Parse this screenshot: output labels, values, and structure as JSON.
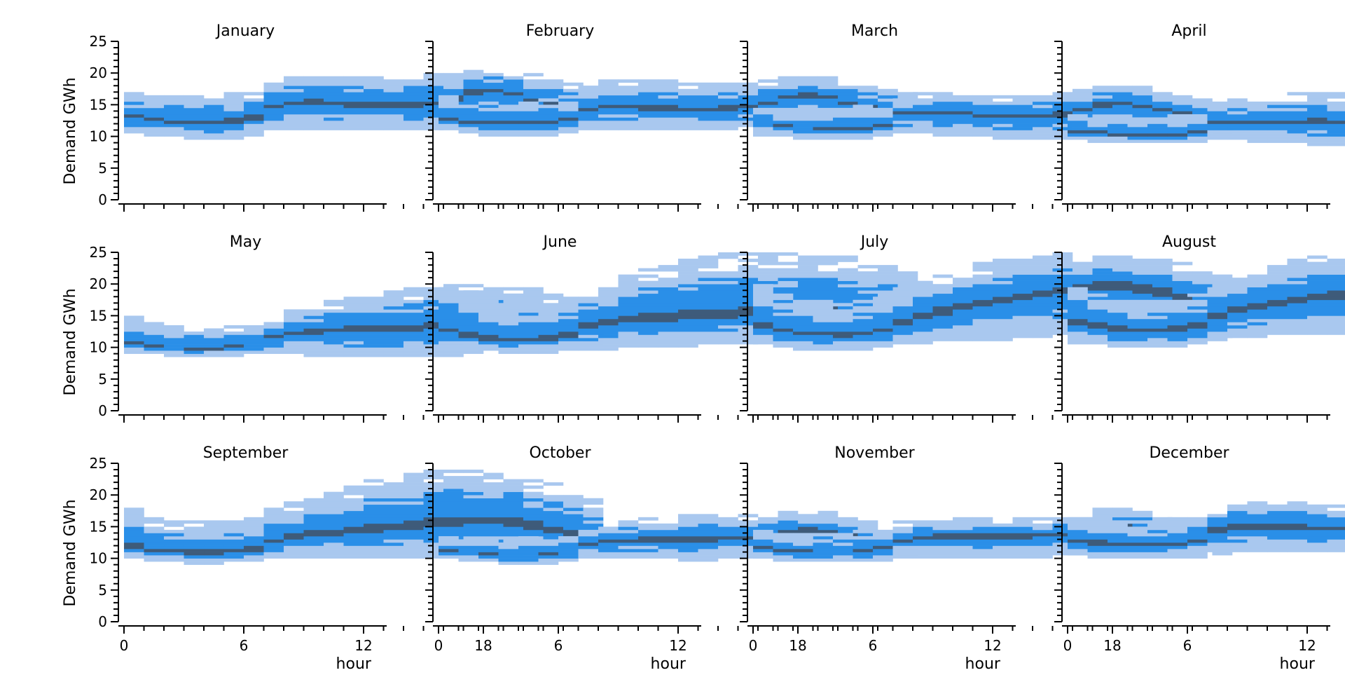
{
  "chart_data": {
    "type": "heatmap",
    "kind": "2d-histogram-facet-grid",
    "xlabel": "hour",
    "ylabel": "Demand GWh",
    "x_ticks": [
      0,
      6,
      12,
      18
    ],
    "x_range": [
      0,
      23
    ],
    "y_ticks": [
      0,
      5,
      10,
      15,
      20,
      25
    ],
    "ylim": [
      0,
      25
    ],
    "bin_size_gwh": 0.5,
    "colors": {
      "light": "#a9c8ef",
      "mid": "#2a8fe8",
      "dark": "#3e5b7a"
    },
    "panels": [
      {
        "title": "January",
        "median": [
          13.0,
          12.6,
          12.3,
          12.2,
          12.2,
          12.4,
          13.0,
          14.8,
          15.3,
          15.4,
          15.2,
          15.0,
          14.9,
          14.9,
          15.0,
          15.3,
          16.0,
          17.1,
          17.3,
          16.7,
          15.8,
          15.1,
          14.6,
          13.7
        ],
        "lower": [
          10.6,
          10.3,
          10.0,
          9.8,
          9.8,
          9.9,
          10.2,
          11.0,
          11.2,
          11.2,
          11.2,
          11.2,
          11.2,
          11.2,
          11.3,
          11.4,
          11.8,
          12.6,
          12.8,
          12.7,
          12.6,
          12.5,
          12.4,
          11.6
        ],
        "upper": [
          16.8,
          16.8,
          16.5,
          16.5,
          16.5,
          16.8,
          16.8,
          18.3,
          19.3,
          19.4,
          19.5,
          19.5,
          19.5,
          19.5,
          19.5,
          19.6,
          19.9,
          20.6,
          20.6,
          20.4,
          19.6,
          18.9,
          18.6,
          17.8
        ]
      },
      {
        "title": "February",
        "median": [
          12.7,
          12.4,
          12.1,
          12.0,
          12.0,
          12.1,
          12.6,
          14.2,
          14.6,
          14.6,
          14.5,
          14.4,
          14.3,
          14.3,
          14.4,
          14.7,
          15.3,
          16.3,
          16.6,
          16.1,
          15.4,
          14.8,
          14.3,
          13.4
        ],
        "lower": [
          11.0,
          10.6,
          10.4,
          10.2,
          10.2,
          10.3,
          10.6,
          11.2,
          11.4,
          11.4,
          11.3,
          11.2,
          11.2,
          11.2,
          11.3,
          11.5,
          11.9,
          12.6,
          12.9,
          12.8,
          12.6,
          12.5,
          12.3,
          11.5
        ],
        "upper": [
          16.2,
          15.8,
          15.5,
          15.5,
          15.8,
          16.0,
          16.2,
          17.8,
          18.6,
          18.8,
          18.8,
          18.6,
          18.5,
          18.4,
          18.5,
          18.6,
          18.9,
          19.4,
          19.4,
          19.2,
          18.6,
          18.0,
          17.5,
          16.9
        ]
      },
      {
        "title": "March",
        "median": [
          11.9,
          11.6,
          11.4,
          11.3,
          11.3,
          11.4,
          11.9,
          13.6,
          13.9,
          13.8,
          13.6,
          13.4,
          13.2,
          13.2,
          13.3,
          13.6,
          14.2,
          15.1,
          15.3,
          14.9,
          14.3,
          13.8,
          13.3,
          12.6
        ],
        "lower": [
          10.4,
          10.1,
          9.9,
          9.7,
          9.7,
          9.8,
          10.1,
          10.6,
          10.6,
          10.4,
          10.2,
          10.0,
          9.8,
          9.6,
          9.6,
          9.6,
          10.0,
          10.7,
          11.1,
          11.3,
          11.4,
          11.4,
          11.3,
          10.6
        ],
        "upper": [
          14.5,
          14.2,
          14.2,
          14.2,
          14.5,
          14.8,
          14.8,
          16.0,
          16.7,
          16.7,
          16.5,
          16.3,
          16.3,
          16.4,
          16.5,
          16.7,
          17.2,
          17.8,
          17.9,
          17.6,
          16.9,
          16.4,
          15.9,
          15.1
        ]
      },
      {
        "title": "April",
        "median": [
          10.8,
          10.5,
          10.3,
          10.2,
          10.2,
          10.3,
          10.7,
          12.0,
          12.3,
          12.3,
          12.3,
          12.3,
          12.3,
          12.3,
          12.4,
          12.6,
          12.9,
          13.3,
          13.5,
          13.4,
          13.1,
          12.7,
          12.4,
          11.7
        ],
        "lower": [
          9.6,
          9.3,
          9.1,
          9.0,
          9.0,
          9.1,
          9.4,
          9.6,
          9.5,
          9.3,
          9.1,
          9.0,
          8.9,
          8.9,
          8.9,
          9.0,
          9.3,
          9.8,
          10.3,
          10.5,
          10.8,
          10.9,
          11.0,
          10.7
        ],
        "upper": [
          13.8,
          13.2,
          12.8,
          12.8,
          12.8,
          13.1,
          13.3,
          15.2,
          15.7,
          16.0,
          16.4,
          16.6,
          16.8,
          16.7,
          16.7,
          16.5,
          16.3,
          16.6,
          16.8,
          16.8,
          16.7,
          15.5,
          14.8,
          13.9
        ]
      },
      {
        "title": "May",
        "median": [
          10.5,
          10.1,
          9.9,
          9.8,
          9.8,
          10.0,
          10.4,
          11.7,
          12.2,
          12.5,
          12.7,
          12.8,
          12.9,
          13.0,
          13.1,
          13.3,
          13.5,
          13.8,
          13.9,
          13.8,
          13.6,
          13.2,
          12.8,
          11.3
        ],
        "lower": [
          9.4,
          9.1,
          8.8,
          8.6,
          8.6,
          8.7,
          9.0,
          9.2,
          9.1,
          8.9,
          8.7,
          8.6,
          8.5,
          8.5,
          8.5,
          8.6,
          8.9,
          9.4,
          10.0,
          10.4,
          10.7,
          10.9,
          10.9,
          10.6
        ],
        "upper": [
          15.0,
          13.8,
          13.2,
          13.0,
          13.0,
          13.1,
          13.2,
          14.5,
          15.9,
          16.5,
          17.2,
          17.8,
          18.3,
          18.8,
          19.3,
          19.7,
          20.0,
          20.0,
          19.8,
          19.5,
          19.2,
          18.4,
          17.4,
          16.6
        ]
      },
      {
        "title": "June",
        "median": [
          12.5,
          11.8,
          11.3,
          11.1,
          11.1,
          11.2,
          11.8,
          13.2,
          13.8,
          14.2,
          14.5,
          14.7,
          14.9,
          15.0,
          15.2,
          15.4,
          15.6,
          15.8,
          15.8,
          15.6,
          15.3,
          14.9,
          14.5,
          13.4
        ],
        "lower": [
          10.4,
          10.0,
          9.6,
          9.3,
          9.3,
          9.3,
          9.6,
          9.9,
          9.9,
          10.0,
          10.1,
          10.2,
          10.3,
          10.5,
          10.7,
          10.9,
          11.1,
          11.4,
          11.7,
          11.9,
          12.1,
          12.1,
          11.9,
          11.0
        ],
        "upper": [
          19.8,
          18.6,
          17.4,
          16.6,
          16.6,
          17.0,
          17.8,
          19.3,
          20.3,
          21.4,
          22.4,
          23.2,
          23.8,
          24.4,
          24.6,
          24.8,
          24.9,
          24.9,
          24.8,
          24.5,
          24.1,
          23.8,
          23.1,
          21.8
        ]
      },
      {
        "title": "July",
        "median": [
          13.2,
          12.6,
          12.2,
          12.0,
          11.9,
          12.1,
          12.7,
          14.1,
          15.0,
          15.7,
          16.4,
          17.1,
          17.6,
          18.1,
          18.6,
          19.1,
          19.5,
          19.8,
          19.8,
          19.4,
          18.8,
          18.0,
          17.1,
          16.1
        ],
        "lower": [
          10.6,
          10.0,
          9.8,
          9.6,
          9.6,
          9.7,
          10.1,
          10.6,
          10.9,
          11.0,
          11.1,
          11.2,
          11.4,
          11.6,
          11.8,
          12.0,
          12.3,
          12.6,
          12.9,
          12.9,
          12.7,
          12.5,
          12.2,
          11.8
        ],
        "upper": [
          19.6,
          18.2,
          17.5,
          17.1,
          17.0,
          17.4,
          18.0,
          19.3,
          20.4,
          21.4,
          22.4,
          23.2,
          23.8,
          24.3,
          24.5,
          24.6,
          24.6,
          24.6,
          24.5,
          24.2,
          23.8,
          23.1,
          22.0,
          21.4
        ]
      },
      {
        "title": "August",
        "median": [
          13.9,
          13.3,
          12.9,
          12.7,
          12.7,
          12.8,
          13.4,
          14.8,
          15.8,
          16.4,
          17.0,
          17.5,
          17.9,
          18.3,
          18.6,
          18.9,
          19.1,
          19.3,
          19.3,
          19.0,
          18.5,
          17.8,
          17.1,
          16.2
        ],
        "lower": [
          10.9,
          10.5,
          10.2,
          10.0,
          10.0,
          10.1,
          10.5,
          11.1,
          11.5,
          11.8,
          12.0,
          12.1,
          12.2,
          12.3,
          12.4,
          12.5,
          12.6,
          12.8,
          13.0,
          13.1,
          13.1,
          13.0,
          12.5,
          11.3
        ],
        "upper": [
          19.5,
          18.5,
          17.8,
          17.5,
          17.5,
          17.8,
          18.4,
          19.9,
          21.2,
          22.2,
          23.2,
          24.0,
          24.6,
          24.9,
          25.0,
          25.0,
          25.0,
          25.0,
          24.9,
          24.6,
          23.8,
          23.0,
          22.0,
          21.1
        ]
      },
      {
        "title": "September",
        "median": [
          11.7,
          11.2,
          10.9,
          10.8,
          10.8,
          10.9,
          11.4,
          12.7,
          13.3,
          13.7,
          14.0,
          14.3,
          14.6,
          14.9,
          15.2,
          15.5,
          15.7,
          15.9,
          15.9,
          15.6,
          15.1,
          14.5,
          13.8,
          12.7
        ],
        "lower": [
          10.0,
          9.7,
          9.5,
          9.4,
          9.4,
          9.5,
          9.7,
          10.1,
          10.2,
          10.2,
          10.2,
          10.1,
          10.1,
          10.1,
          10.2,
          10.3,
          10.4,
          10.6,
          10.8,
          10.9,
          11.0,
          11.1,
          11.0,
          10.6
        ],
        "upper": [
          17.8,
          16.6,
          16.0,
          15.8,
          15.8,
          16.2,
          16.8,
          17.8,
          18.6,
          19.3,
          20.2,
          21.2,
          22.2,
          23.0,
          23.6,
          23.9,
          24.0,
          24.0,
          23.7,
          23.2,
          22.4,
          21.6,
          20.5,
          19.2
        ]
      },
      {
        "title": "October",
        "median": [
          11.2,
          10.9,
          10.6,
          10.4,
          10.4,
          10.6,
          11.0,
          12.3,
          12.7,
          12.9,
          13.0,
          13.0,
          13.0,
          13.0,
          13.1,
          13.3,
          13.6,
          14.2,
          14.5,
          14.4,
          13.8,
          13.2,
          12.6,
          11.8
        ],
        "lower": [
          10.0,
          9.7,
          9.5,
          9.3,
          9.3,
          9.4,
          9.7,
          10.1,
          10.2,
          10.2,
          10.1,
          10.0,
          9.9,
          9.9,
          10.0,
          10.1,
          10.4,
          10.9,
          11.3,
          11.5,
          11.5,
          11.4,
          11.2,
          10.8
        ],
        "upper": [
          13.4,
          13.1,
          12.9,
          12.9,
          13.1,
          13.4,
          13.4,
          14.6,
          15.4,
          15.9,
          16.2,
          16.4,
          16.6,
          16.7,
          16.8,
          16.9,
          17.1,
          17.4,
          17.4,
          17.1,
          16.2,
          15.6,
          15.0,
          14.4
        ]
      },
      {
        "title": "November",
        "median": [
          11.6,
          11.2,
          11.0,
          10.9,
          10.9,
          11.0,
          11.5,
          12.9,
          13.4,
          13.5,
          13.5,
          13.5,
          13.5,
          13.5,
          13.6,
          13.8,
          14.2,
          15.0,
          15.3,
          15.0,
          14.3,
          13.7,
          13.1,
          12.3
        ],
        "lower": [
          10.1,
          9.8,
          9.6,
          9.5,
          9.5,
          9.6,
          9.9,
          10.3,
          10.4,
          10.4,
          10.4,
          10.3,
          10.3,
          10.3,
          10.4,
          10.6,
          10.9,
          11.6,
          12.0,
          12.1,
          12.0,
          11.8,
          11.6,
          10.9
        ],
        "upper": [
          14.3,
          14.0,
          13.8,
          13.8,
          14.0,
          14.3,
          14.4,
          15.6,
          16.2,
          16.3,
          16.2,
          16.1,
          16.1,
          16.1,
          16.2,
          16.5,
          17.0,
          17.6,
          17.6,
          17.3,
          16.4,
          15.8,
          15.3,
          14.8
        ]
      },
      {
        "title": "December",
        "median": [
          12.8,
          12.4,
          12.1,
          12.0,
          12.0,
          12.2,
          12.8,
          14.5,
          15.0,
          15.1,
          15.0,
          14.9,
          14.8,
          14.8,
          14.9,
          15.2,
          15.9,
          17.0,
          17.2,
          16.6,
          15.8,
          15.0,
          14.5,
          13.6
        ],
        "lower": [
          10.8,
          10.4,
          10.2,
          10.0,
          10.0,
          10.1,
          10.4,
          11.0,
          11.2,
          11.2,
          11.2,
          11.2,
          11.2,
          11.2,
          11.3,
          11.5,
          11.9,
          12.7,
          13.0,
          12.9,
          12.7,
          12.5,
          12.3,
          11.5
        ],
        "upper": [
          16.6,
          16.1,
          15.8,
          15.8,
          16.0,
          16.4,
          16.5,
          18.0,
          18.7,
          18.8,
          18.8,
          18.7,
          18.6,
          18.5,
          18.6,
          18.8,
          19.3,
          20.3,
          20.4,
          20.0,
          19.3,
          18.6,
          18.3,
          17.6
        ]
      }
    ]
  }
}
